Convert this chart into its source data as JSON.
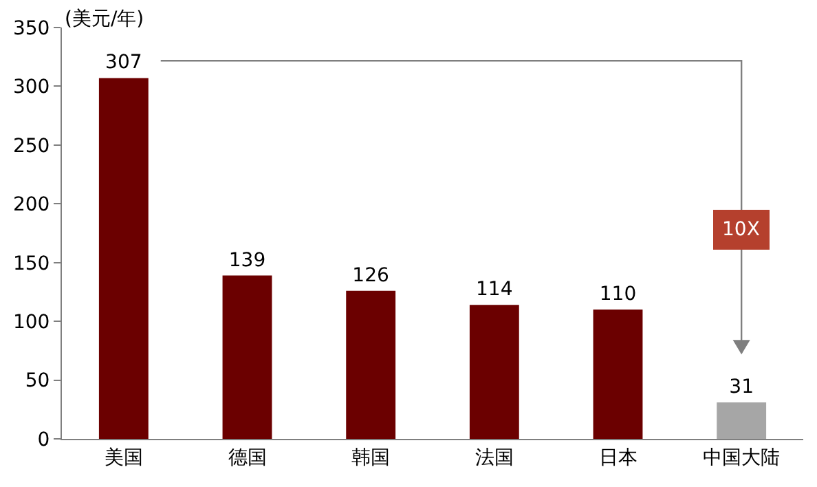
{
  "chart_data": {
    "type": "bar",
    "ylabel": "(美元/年)",
    "categories": [
      "美国",
      "德国",
      "韩国",
      "法国",
      "日本",
      "中国大陆"
    ],
    "values": [
      307,
      139,
      126,
      114,
      110,
      31
    ],
    "colors": [
      "#6b0000",
      "#6b0000",
      "#6b0000",
      "#6b0000",
      "#6b0000",
      "#a6a6a6"
    ],
    "ylim": [
      0,
      350
    ],
    "yticks": [
      0,
      50,
      100,
      150,
      200,
      250,
      300,
      350
    ],
    "data_labels": true,
    "annotations": [
      "10X"
    ]
  }
}
